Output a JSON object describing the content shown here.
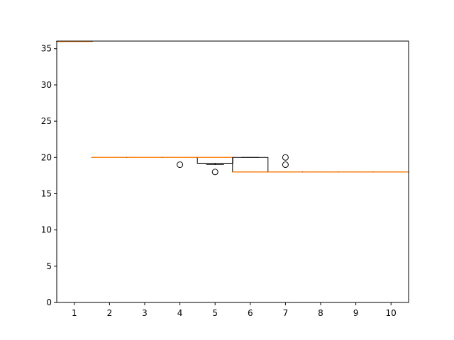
{
  "chart_data": {
    "type": "box",
    "title": "",
    "xlabel": "",
    "ylabel": "",
    "categories": [
      "1",
      "2",
      "3",
      "4",
      "5",
      "6",
      "7",
      "8",
      "9",
      "10"
    ],
    "ylim": [
      0,
      36.05
    ],
    "yticks": [
      0,
      5,
      10,
      15,
      20,
      25,
      30,
      35
    ],
    "grid": false,
    "colors": {
      "box": "#000000",
      "median": "#ff7f0e",
      "flier": "#000000",
      "background": "#ffffff"
    },
    "boxes": [
      {
        "label": "1",
        "whislo": 36,
        "q1": 36,
        "med": 36,
        "q3": 36,
        "whishi": 36,
        "fliers": []
      },
      {
        "label": "2",
        "whislo": 20,
        "q1": 20,
        "med": 20,
        "q3": 20,
        "whishi": 20,
        "fliers": []
      },
      {
        "label": "3",
        "whislo": 20,
        "q1": 20,
        "med": 20,
        "q3": 20,
        "whishi": 20,
        "fliers": []
      },
      {
        "label": "4",
        "whislo": 20,
        "q1": 20,
        "med": 20,
        "q3": 20,
        "whishi": 20,
        "fliers": [
          19
        ]
      },
      {
        "label": "5",
        "whislo": 19,
        "q1": 19.2,
        "med": 20,
        "q3": 20,
        "whishi": 20,
        "fliers": [
          18
        ]
      },
      {
        "label": "6",
        "whislo": 18,
        "q1": 18,
        "med": 18,
        "q3": 20,
        "whishi": 20,
        "fliers": []
      },
      {
        "label": "7",
        "whislo": 18,
        "q1": 18,
        "med": 18,
        "q3": 18,
        "whishi": 18,
        "fliers": [
          19,
          20
        ]
      },
      {
        "label": "8",
        "whislo": 18,
        "q1": 18,
        "med": 18,
        "q3": 18,
        "whishi": 18,
        "fliers": []
      },
      {
        "label": "9",
        "whislo": 18,
        "q1": 18,
        "med": 18,
        "q3": 18,
        "whishi": 18,
        "fliers": []
      },
      {
        "label": "10",
        "whislo": 18,
        "q1": 18,
        "med": 18,
        "q3": 18,
        "whishi": 18,
        "fliers": []
      }
    ]
  }
}
